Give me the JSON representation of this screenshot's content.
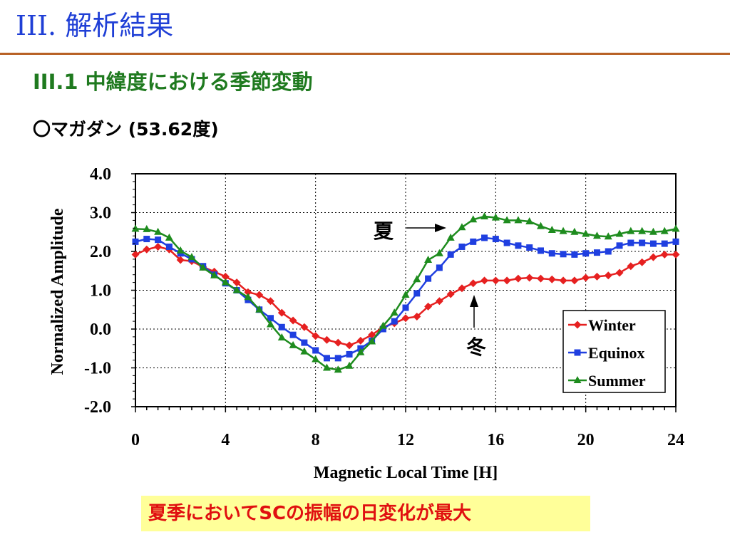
{
  "slide": {
    "title": "III. 解析結果",
    "subtitle": "III.1 中緯度における季節変動",
    "station": "〇マガダン (53.62度)",
    "conclusion": "夏季においてSCの振幅の日変化が最大"
  },
  "chart_data": {
    "type": "line",
    "xlabel": "Magnetic Local Time [H]",
    "ylabel": "Normalized Amplitude",
    "xlim": [
      0,
      24
    ],
    "ylim": [
      -2.0,
      4.0
    ],
    "x_ticks": [
      "0",
      "4",
      "8",
      "12",
      "16",
      "20",
      "24"
    ],
    "y_ticks": [
      "4.0",
      "3.0",
      "2.0",
      "1.0",
      "0.0",
      "-1.0",
      "-2.0"
    ],
    "grid": true,
    "legend_position": "bottom-right",
    "x": [
      0,
      0.5,
      1,
      1.5,
      2,
      2.5,
      3,
      3.5,
      4,
      4.5,
      5,
      5.5,
      6,
      6.5,
      7,
      7.5,
      8,
      8.5,
      9,
      9.5,
      10,
      10.5,
      11,
      11.5,
      12,
      12.5,
      13,
      13.5,
      14,
      14.5,
      15,
      15.5,
      16,
      16.5,
      17,
      17.5,
      18,
      18.5,
      19,
      19.5,
      20,
      20.5,
      21,
      21.5,
      22,
      22.5,
      23,
      23.5,
      24
    ],
    "series": [
      {
        "name": "Winter",
        "color": "#e62020",
        "marker": "diamond",
        "values": [
          1.92,
          2.05,
          2.12,
          2.05,
          1.78,
          1.75,
          1.6,
          1.48,
          1.35,
          1.2,
          0.95,
          0.88,
          0.72,
          0.42,
          0.22,
          0.05,
          -0.18,
          -0.28,
          -0.35,
          -0.42,
          -0.3,
          -0.15,
          0.05,
          0.15,
          0.28,
          0.32,
          0.58,
          0.72,
          0.9,
          1.05,
          1.18,
          1.25,
          1.25,
          1.25,
          1.3,
          1.32,
          1.3,
          1.28,
          1.25,
          1.25,
          1.32,
          1.35,
          1.38,
          1.45,
          1.62,
          1.72,
          1.85,
          1.92,
          1.92
        ]
      },
      {
        "name": "Equinox",
        "color": "#1f3fe0",
        "marker": "square",
        "values": [
          2.25,
          2.32,
          2.3,
          2.12,
          1.95,
          1.8,
          1.62,
          1.4,
          1.18,
          1.0,
          0.75,
          0.5,
          0.28,
          0.05,
          -0.15,
          -0.35,
          -0.55,
          -0.75,
          -0.75,
          -0.65,
          -0.5,
          -0.3,
          0.0,
          0.2,
          0.55,
          0.92,
          1.3,
          1.58,
          1.92,
          2.12,
          2.25,
          2.35,
          2.32,
          2.22,
          2.15,
          2.1,
          2.02,
          1.95,
          1.93,
          1.92,
          1.95,
          1.97,
          2.0,
          2.15,
          2.22,
          2.22,
          2.2,
          2.2,
          2.25
        ]
      },
      {
        "name": "Summer",
        "color": "#1e8c1e",
        "marker": "triangle",
        "values": [
          2.58,
          2.57,
          2.5,
          2.35,
          2.02,
          1.85,
          1.58,
          1.38,
          1.2,
          1.0,
          0.82,
          0.5,
          0.12,
          -0.22,
          -0.42,
          -0.58,
          -0.78,
          -1.0,
          -1.05,
          -0.95,
          -0.6,
          -0.32,
          0.08,
          0.42,
          0.88,
          1.28,
          1.78,
          1.95,
          2.35,
          2.62,
          2.82,
          2.9,
          2.87,
          2.8,
          2.8,
          2.77,
          2.65,
          2.55,
          2.52,
          2.5,
          2.45,
          2.4,
          2.38,
          2.45,
          2.52,
          2.52,
          2.5,
          2.52,
          2.58
        ]
      }
    ],
    "annotations": [
      {
        "text": "夏"
      },
      {
        "text": "冬"
      }
    ]
  }
}
